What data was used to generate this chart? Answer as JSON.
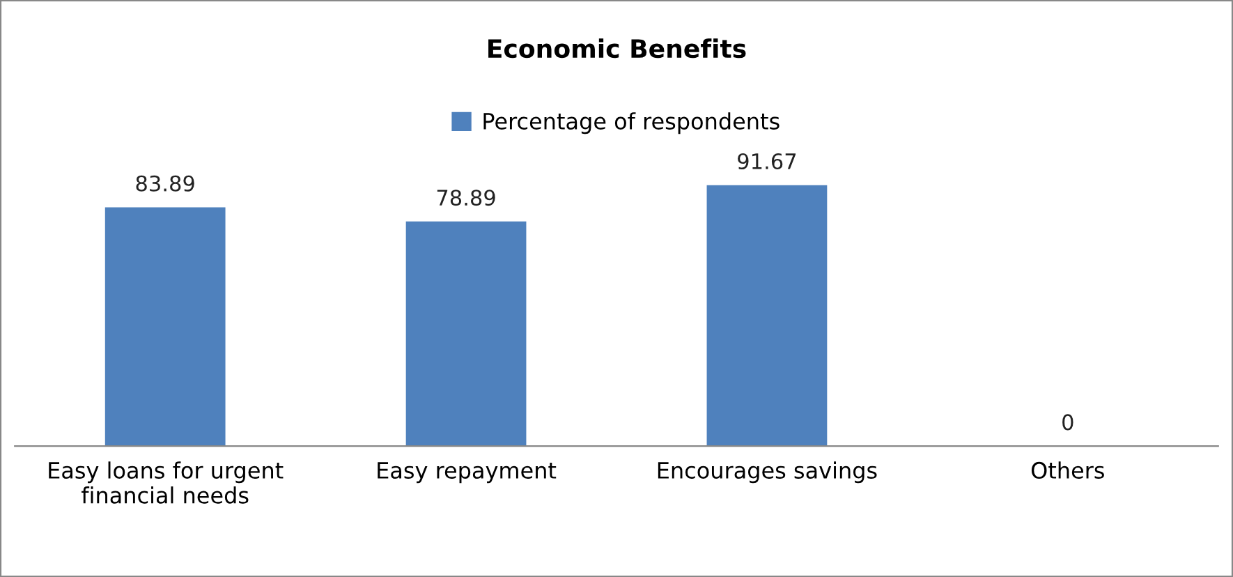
{
  "chart_data": {
    "type": "bar",
    "title": "Economic Benefits",
    "categories": [
      "Easy loans for urgent financial needs",
      "Easy repayment",
      "Encourages savings",
      "Others"
    ],
    "series": [
      {
        "name": "Percentage of respondents",
        "color": "#4f81bd",
        "values": [
          83.89,
          78.89,
          91.67,
          0
        ]
      }
    ],
    "data_labels": true,
    "legend": "top",
    "grid": false
  }
}
